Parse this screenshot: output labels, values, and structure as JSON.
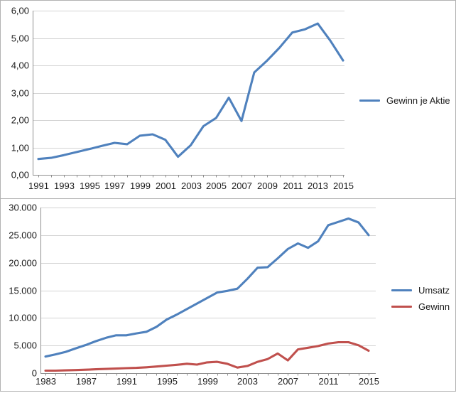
{
  "chart_data": [
    {
      "type": "line",
      "title": "",
      "x": [
        1991,
        1992,
        1993,
        1994,
        1995,
        1996,
        1997,
        1998,
        1999,
        2000,
        2001,
        2002,
        2003,
        2004,
        2005,
        2006,
        2007,
        2008,
        2009,
        2010,
        2011,
        2012,
        2013,
        2014,
        2015
      ],
      "x_tick_labels": [
        "1991",
        "1993",
        "1995",
        "1997",
        "1999",
        "2001",
        "2003",
        "2005",
        "2007",
        "2009",
        "2011",
        "2013",
        "2015"
      ],
      "y_tick_labels": [
        "0,00",
        "1,00",
        "2,00",
        "3,00",
        "4,00",
        "5,00",
        "6,00"
      ],
      "ylim": [
        0,
        6
      ],
      "grid": true,
      "legend_position": "right",
      "series": [
        {
          "name": "Gewinn je Aktie",
          "color": "#4F81BD",
          "values": [
            0.58,
            0.62,
            0.72,
            0.83,
            0.94,
            1.06,
            1.17,
            1.12,
            1.43,
            1.48,
            1.28,
            0.66,
            1.08,
            1.78,
            2.08,
            2.82,
            1.97,
            3.74,
            4.17,
            4.65,
            5.2,
            5.32,
            5.53,
            4.9,
            4.18
          ]
        }
      ]
    },
    {
      "type": "line",
      "title": "",
      "x": [
        1983,
        1984,
        1985,
        1986,
        1987,
        1988,
        1989,
        1990,
        1991,
        1992,
        1993,
        1994,
        1995,
        1996,
        1997,
        1998,
        1999,
        2000,
        2001,
        2002,
        2003,
        2004,
        2005,
        2006,
        2007,
        2008,
        2009,
        2010,
        2011,
        2012,
        2013,
        2014,
        2015
      ],
      "x_tick_labels": [
        "1983",
        "1987",
        "1991",
        "1995",
        "1999",
        "2003",
        "2007",
        "2011",
        "2015"
      ],
      "y_tick_labels": [
        "0",
        "5.000",
        "10.000",
        "15.000",
        "20.000",
        "25.000",
        "30.000"
      ],
      "ylim": [
        0,
        30000
      ],
      "grid": true,
      "legend_position": "right",
      "series": [
        {
          "name": "Umsatz",
          "color": "#4F81BD",
          "values": [
            3000,
            3400,
            3850,
            4500,
            5100,
            5800,
            6400,
            6850,
            6850,
            7200,
            7500,
            8400,
            9700,
            10600,
            11600,
            12600,
            13600,
            14600,
            14900,
            15300,
            17100,
            19100,
            19200,
            20800,
            22500,
            23500,
            22700,
            23900,
            26800,
            27400,
            28000,
            27300,
            25000
          ]
        },
        {
          "name": "Gewinn",
          "color": "#C0504D",
          "values": [
            450,
            450,
            500,
            550,
            620,
            700,
            760,
            820,
            900,
            950,
            1050,
            1200,
            1350,
            1500,
            1700,
            1550,
            1950,
            2050,
            1700,
            1000,
            1300,
            2050,
            2550,
            3550,
            2300,
            4300,
            4600,
            4900,
            5350,
            5600,
            5600,
            5050,
            4050
          ]
        }
      ]
    }
  ]
}
